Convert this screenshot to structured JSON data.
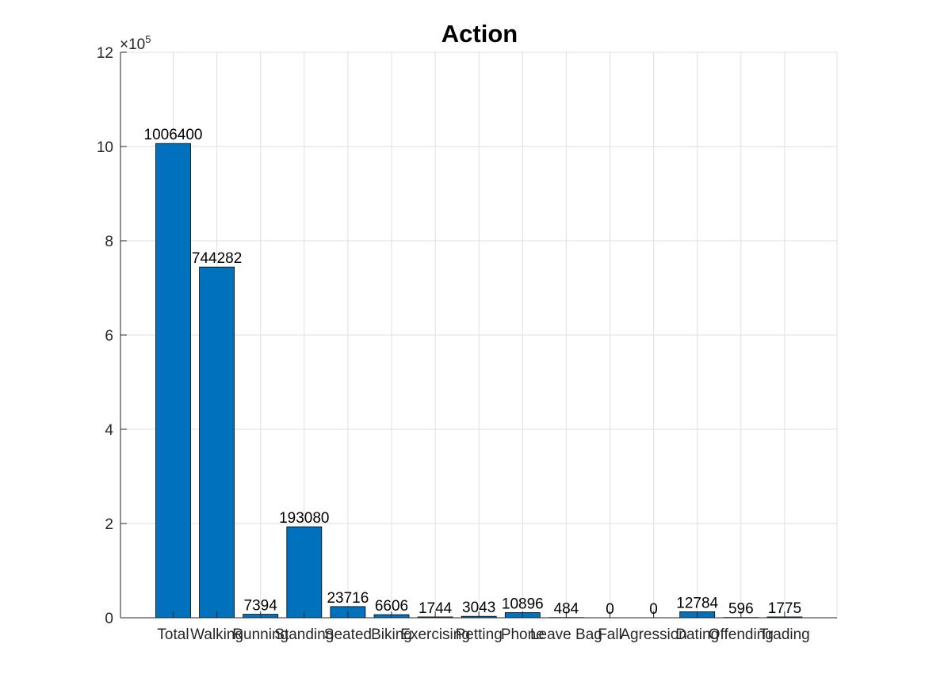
{
  "chart_data": {
    "type": "bar",
    "title": "Action",
    "xlabel": "",
    "ylabel": "",
    "y_exponent": {
      "base": "×10",
      "power": "5"
    },
    "categories": [
      "Total",
      "Walking",
      "Running",
      "Standing",
      "Seated",
      "Biking",
      "Exercising",
      "Petting",
      "Phone",
      "Leave Bag",
      "Fall",
      "Agression",
      "Dating",
      "Offending",
      "Trading"
    ],
    "values": [
      1006400,
      744282,
      7394,
      193080,
      23716,
      6606,
      1744,
      3043,
      10896,
      484,
      0,
      0,
      12784,
      596,
      1775
    ],
    "data_labels": [
      "1006400",
      "744282",
      "7394",
      "193080",
      "23716",
      "6606",
      "1744",
      "3043",
      "10896",
      "484",
      "0",
      "0",
      "12784",
      "596",
      "1775"
    ],
    "ylim": [
      0,
      1200000
    ],
    "yticks": [
      0,
      200000,
      400000,
      600000,
      800000,
      1000000,
      1200000
    ],
    "ytick_labels": [
      "0",
      "2",
      "4",
      "6",
      "8",
      "10",
      "12"
    ],
    "grid": true,
    "bar_color": "#0072BD",
    "grid_color": "#DFDFDF",
    "axis_color": "#262626"
  }
}
